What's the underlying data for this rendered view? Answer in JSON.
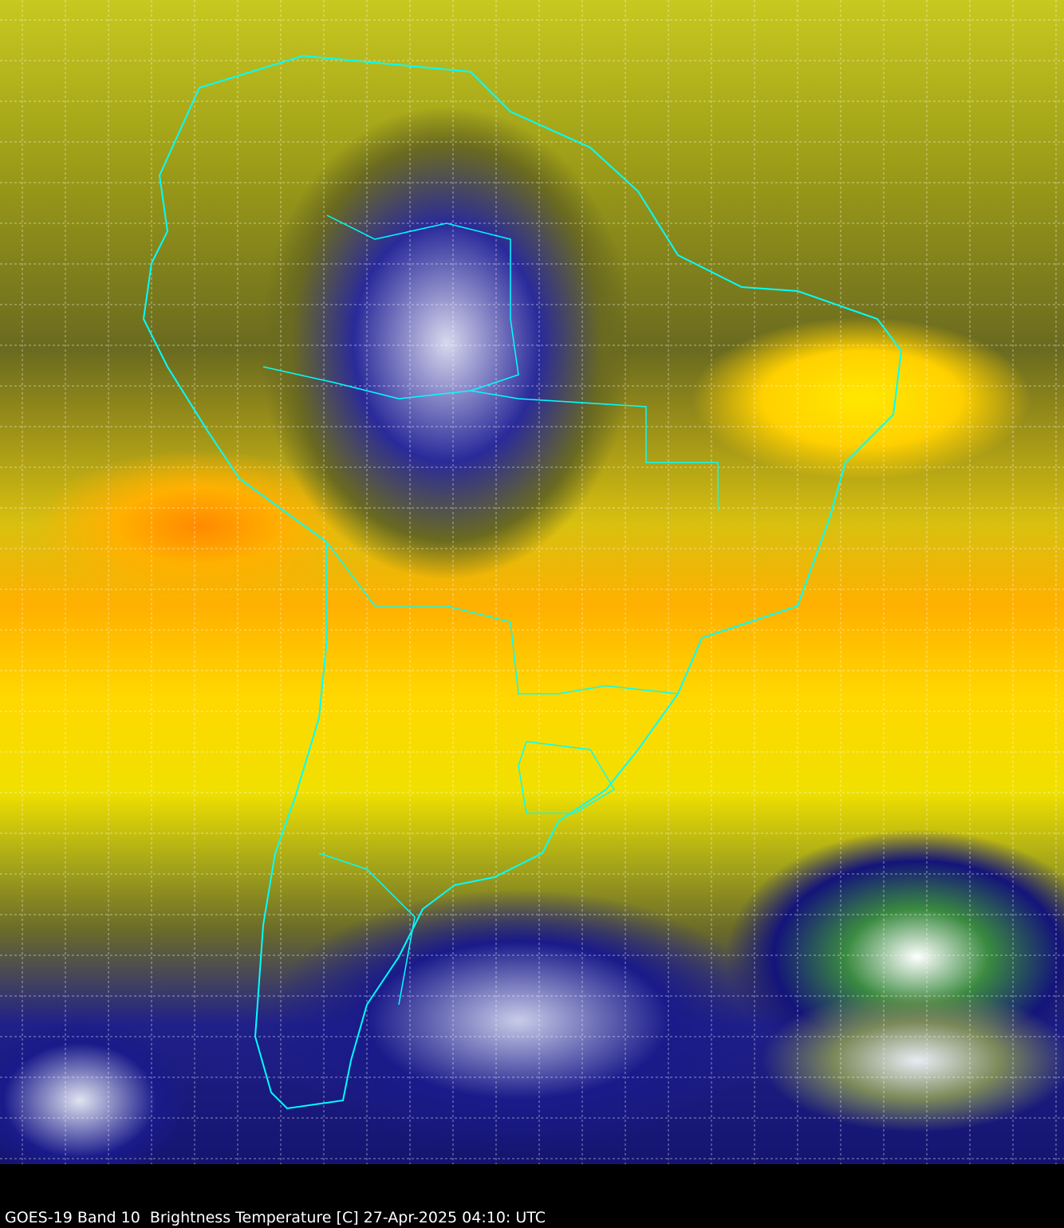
{
  "caption": "GOES-19 Band 10  Brightness Temperature [C] 27-Apr-2025 04:10: UTC",
  "colors": {
    "border_lines": "#00ffff",
    "grid_lines": "#ffffff",
    "footer": "#000000"
  }
}
